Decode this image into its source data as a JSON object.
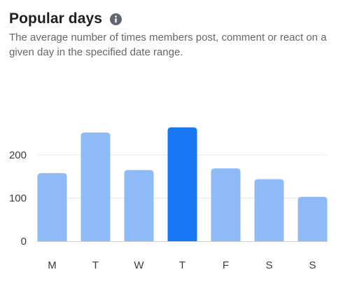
{
  "card": {
    "title": "Popular days",
    "subtitle": "The average number of times members post, comment or react on a given day in the specified date range.",
    "info_icon": "info-icon"
  },
  "colors": {
    "bar": "#8fbaf8",
    "bar_highlight": "#1877f2",
    "grid": "#e4e6eb",
    "baseline": "#d0d2d6"
  },
  "chart_data": {
    "type": "bar",
    "categories": [
      "M",
      "T",
      "W",
      "T",
      "F",
      "S",
      "S"
    ],
    "values": [
      158,
      252,
      165,
      264,
      169,
      144,
      103
    ],
    "highlight_index": 3,
    "title": "Popular days",
    "subtitle": "The average number of times members post, comment or react on a given day in the specified date range.",
    "xlabel": "",
    "ylabel": "",
    "yticks": [
      0,
      100,
      200
    ],
    "ylim": [
      0,
      300
    ],
    "grid": true,
    "legend": "none"
  }
}
